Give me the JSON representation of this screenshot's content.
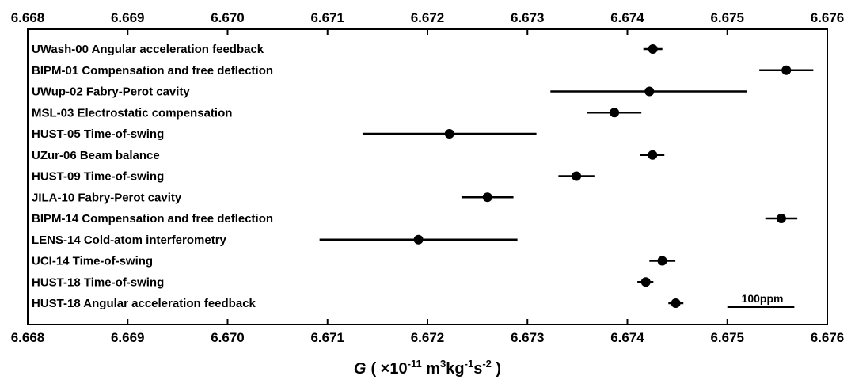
{
  "chart_data": {
    "type": "scatter",
    "style": "dot-with-horizontal-error-bars",
    "xlabel": {
      "symbol": "G",
      "open": "( ×10",
      "exp1": "-11",
      "unit1": " m",
      "exp2": "3",
      "unit2": "kg",
      "exp3": "-1",
      "unit3": "s",
      "exp4": "-2",
      "close": " )"
    },
    "xlim": [
      6.668,
      6.676
    ],
    "xticks": [
      "6.668",
      "6.669",
      "6.670",
      "6.671",
      "6.672",
      "6.673",
      "6.674",
      "6.675",
      "6.676"
    ],
    "ticks_top_and_bottom": true,
    "scale_bar": {
      "label": "100ppm",
      "x_start": 6.675,
      "x_end": 6.67567
    },
    "marker_color": "#000000",
    "points": [
      {
        "label": "UWash-00 Angular acceleration feedback",
        "value": 6.674255,
        "xerr_low": 6.67416,
        "xerr_high": 6.67435
      },
      {
        "label": "BIPM-01 Compensation and free deflection",
        "value": 6.67559,
        "xerr_low": 6.67532,
        "xerr_high": 6.67586
      },
      {
        "label": "UWup-02 Fabry-Perot cavity",
        "value": 6.67422,
        "xerr_low": 6.67323,
        "xerr_high": 6.6752
      },
      {
        "label": "MSL-03 Electrostatic compensation",
        "value": 6.67387,
        "xerr_low": 6.6736,
        "xerr_high": 6.67414
      },
      {
        "label": "HUST-05 Time-of-swing",
        "value": 6.67222,
        "xerr_low": 6.67135,
        "xerr_high": 6.67309
      },
      {
        "label": "UZur-06 Beam balance",
        "value": 6.674252,
        "xerr_low": 6.67413,
        "xerr_high": 6.67437
      },
      {
        "label": "HUST-09 Time-of-swing",
        "value": 6.67349,
        "xerr_low": 6.67331,
        "xerr_high": 6.67367
      },
      {
        "label": "JILA-10 Fabry-Perot cavity",
        "value": 6.6726,
        "xerr_low": 6.67234,
        "xerr_high": 6.67286
      },
      {
        "label": "BIPM-14 Compensation and free deflection",
        "value": 6.67554,
        "xerr_low": 6.67538,
        "xerr_high": 6.6757
      },
      {
        "label": "LENS-14 Cold-atom interferometry",
        "value": 6.67191,
        "xerr_low": 6.67092,
        "xerr_high": 6.6729
      },
      {
        "label": "UCI-14 Time-of-swing",
        "value": 6.674349,
        "xerr_low": 6.67422,
        "xerr_high": 6.67448
      },
      {
        "label": "HUST-18 Time-of-swing",
        "value": 6.674184,
        "xerr_low": 6.6741,
        "xerr_high": 6.67426
      },
      {
        "label": "HUST-18 Angular acceleration feedback",
        "value": 6.674484,
        "xerr_low": 6.67441,
        "xerr_high": 6.67456
      }
    ]
  }
}
